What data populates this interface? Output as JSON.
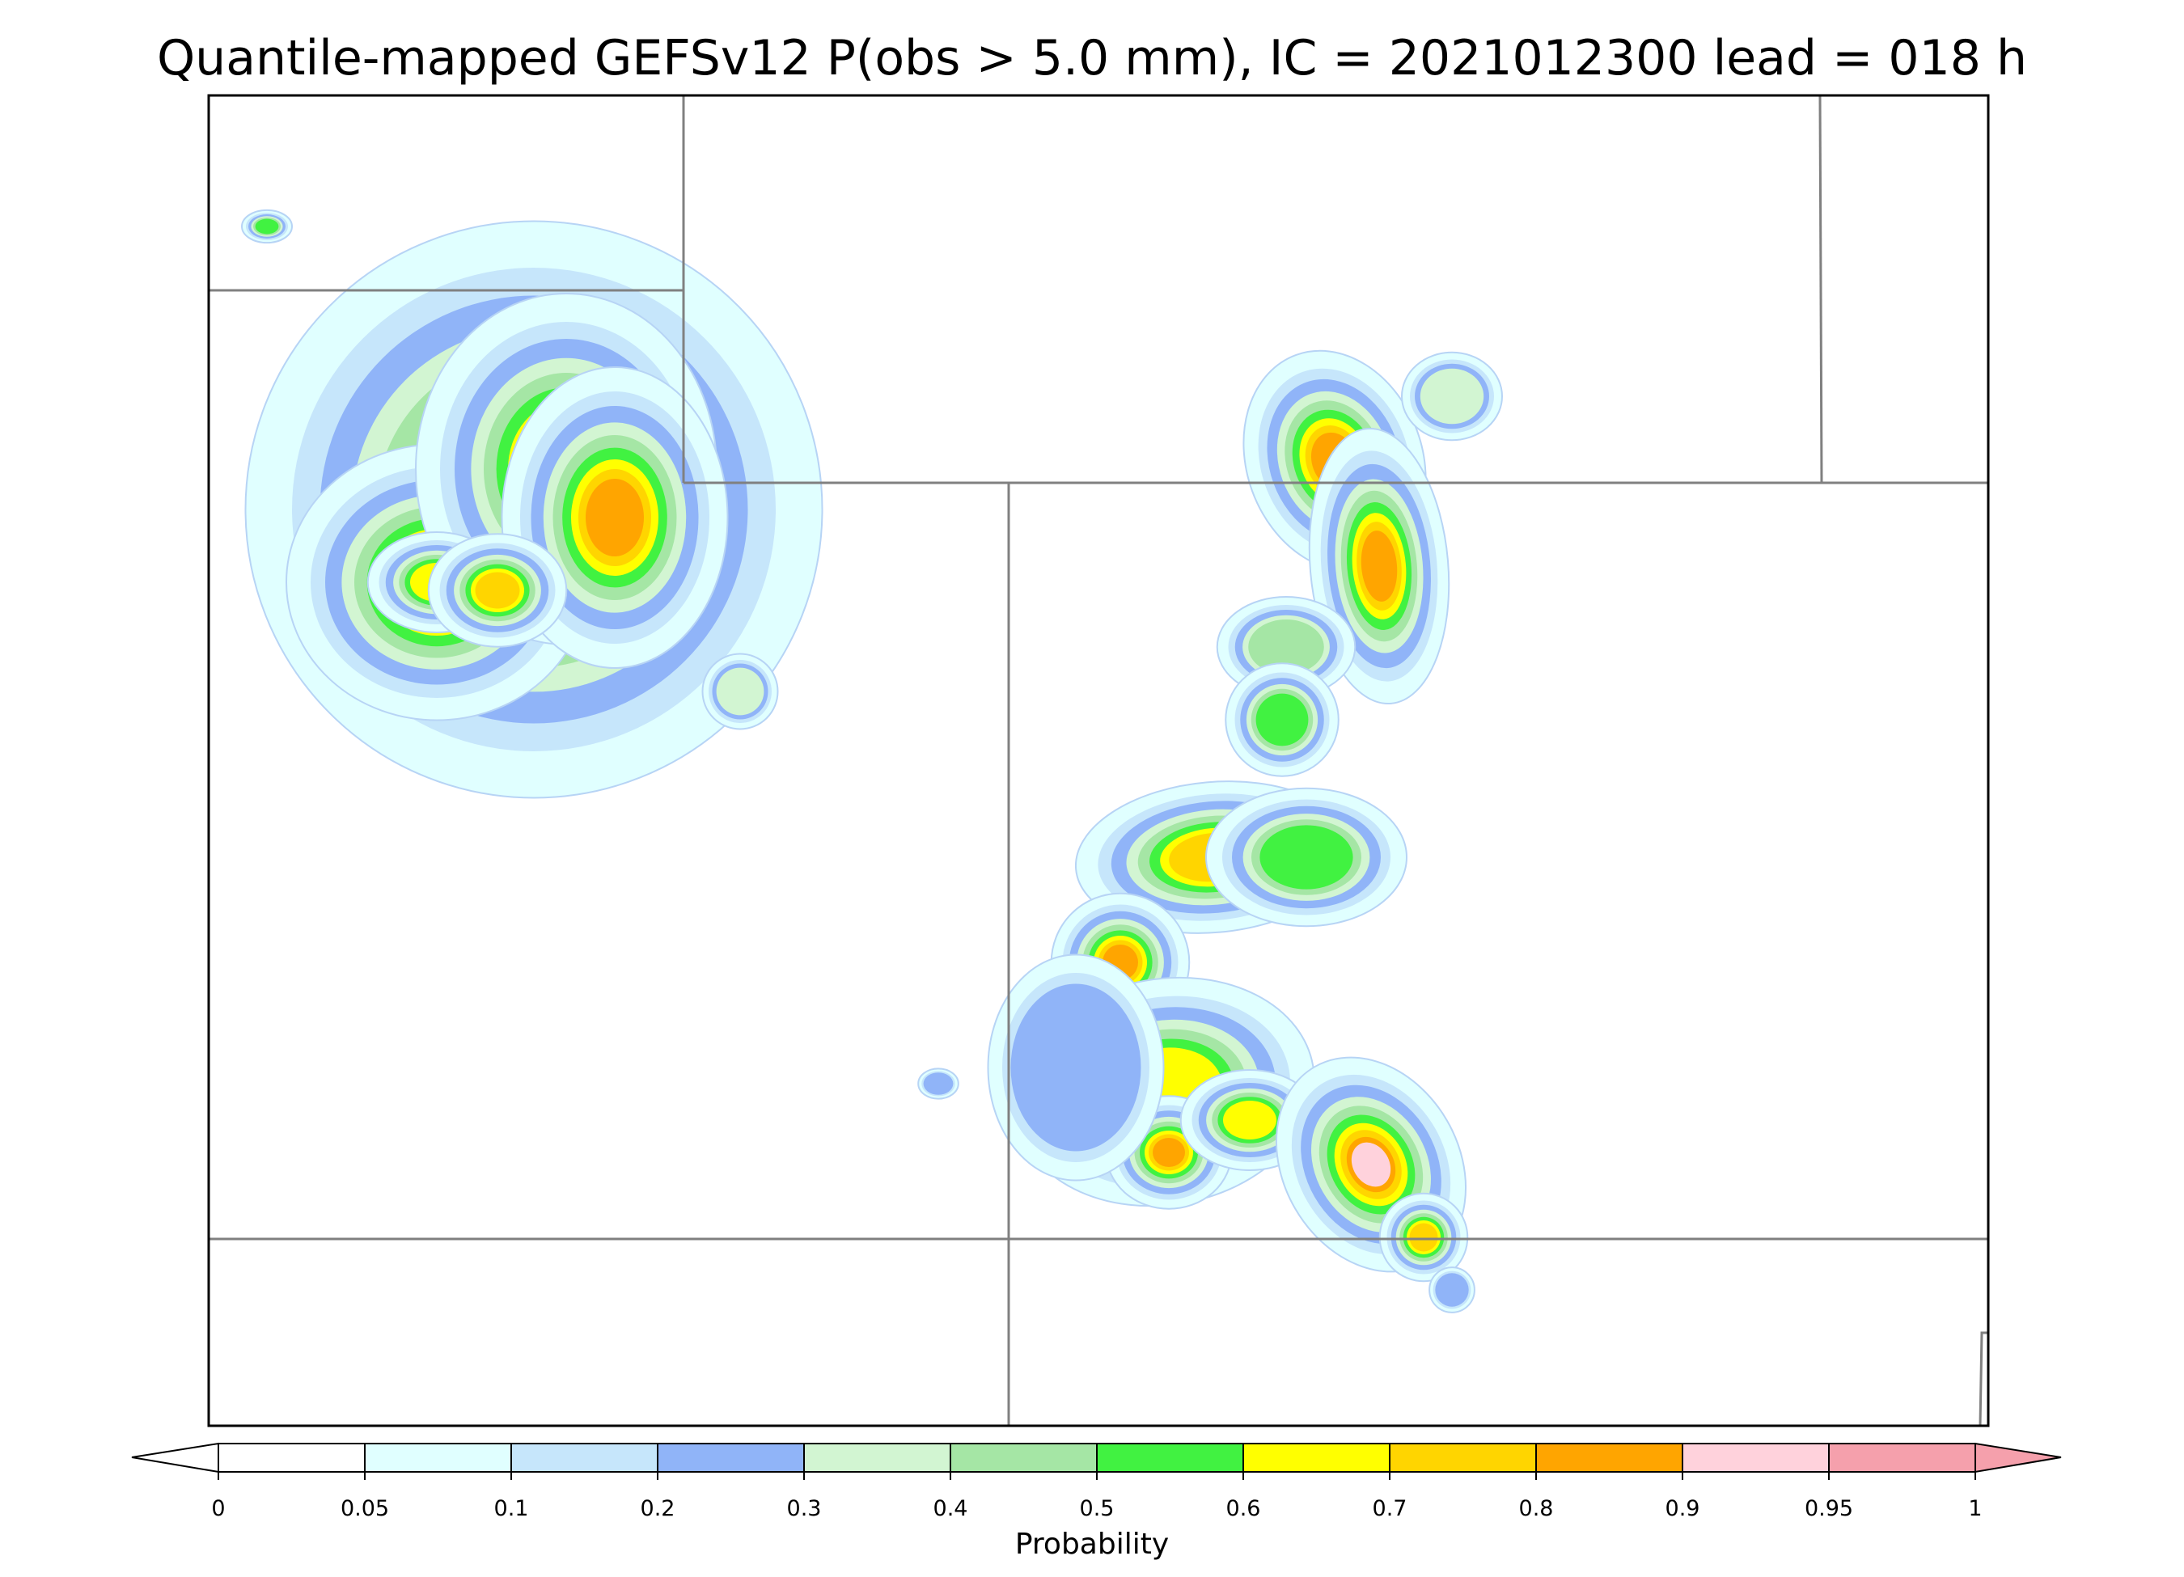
{
  "title": "Quantile-mapped GEFSv12 P(obs > 5.0 mm), IC = 2021012300 lead = 018 h",
  "colorbar": {
    "label": "Probability",
    "levels": [
      0,
      0.05,
      0.1,
      0.2,
      0.3,
      0.4,
      0.5,
      0.6,
      0.7,
      0.8,
      0.9,
      0.95,
      1
    ],
    "tick_labels": [
      "0",
      "0.05",
      "0.1",
      "0.2",
      "0.3",
      "0.4",
      "0.5",
      "0.6",
      "0.7",
      "0.8",
      "0.9",
      "0.95",
      "1"
    ],
    "colors": [
      "#ffffff",
      "#e0ffff",
      "#c6e6fb",
      "#90b4f8",
      "#d2f5d2",
      "#a5e6a5",
      "#41f241",
      "#ffff00",
      "#ffd500",
      "#ffa500",
      "#ffd2dc",
      "#f5a0ac"
    ],
    "under_color": "#ffffff",
    "over_color": "#f5a0ac",
    "extend": "both"
  },
  "map": {
    "background": "#ffffff",
    "border_color": "#808080",
    "frame_color": "#000000"
  },
  "legend_icons": [
    "colorbar-under-arrow",
    "colorbar-over-arrow"
  ]
}
